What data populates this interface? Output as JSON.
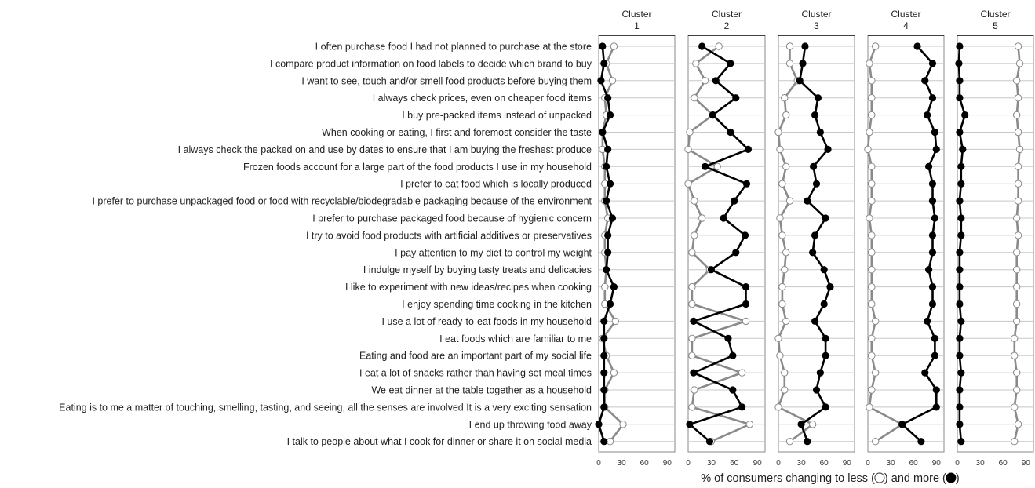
{
  "chart_data": {
    "type": "line",
    "statements": [
      "I often purchase food I had not planned to purchase at the store",
      "I compare product information on food labels to decide which brand to buy",
      "I want to see, touch and/or smell food products before buying them",
      "I always check prices, even on cheaper food items",
      "I buy pre-packed items instead of unpacked",
      "When cooking or eating, I first and foremost consider the taste",
      "I always check the packed on and use by dates to ensure that I am buying the freshest produce",
      "Frozen foods account for a large part of the food products I use in my household",
      "I prefer to eat food which is locally produced",
      "I prefer to purchase unpackaged food or food with recyclable/biodegradable packaging because of the environment",
      "I prefer to purchase packaged food because of hygienic concern",
      "I try to avoid food products with artificial additives or preservatives",
      "I pay attention to my diet to control my weight",
      "I indulge myself by buying tasty treats and delicacies",
      "I like to experiment with new ideas/recipes when cooking",
      "I enjoy spending time cooking in the kitchen",
      "I use a lot of ready-to-eat foods in my household",
      "I eat foods which are familiar to me",
      "Eating and food are an important part of my social life",
      "I eat a lot of snacks rather than having set meal times",
      "We eat dinner at the table together as a household",
      "Eating is to me a matter of touching, smelling, tasting, and seeing, all the senses are involved It is a very exciting sensation",
      "I end up throwing food away",
      "I talk to people about what I cook for dinner or share it on social media"
    ],
    "x_ticks": [
      "0",
      "30",
      "60",
      "90"
    ],
    "xlim": [
      0,
      100
    ],
    "xlabel_prefix": "% of consumers changing to less (",
    "xlabel_middle": ") and more  (",
    "xlabel_suffix": ")",
    "series_styles": {
      "less": {
        "marker": "open circle",
        "line_color": "#8a8a8a"
      },
      "more": {
        "marker": "filled circle",
        "line_color": "#000000"
      }
    },
    "clusters": [
      {
        "title_line1": "Cluster",
        "title_line2": "1",
        "less": [
          20,
          10,
          18,
          8,
          10,
          5,
          5,
          8,
          8,
          8,
          12,
          8,
          8,
          10,
          8,
          8,
          22,
          5,
          10,
          20,
          8,
          8,
          32,
          15
        ],
        "more": [
          5,
          7,
          3,
          12,
          15,
          5,
          12,
          10,
          15,
          10,
          18,
          12,
          12,
          10,
          20,
          15,
          7,
          7,
          7,
          7,
          7,
          7,
          0,
          7
        ]
      },
      {
        "title_line1": "Cluster",
        "title_line2": "2",
        "less": [
          40,
          10,
          22,
          8,
          32,
          2,
          0,
          38,
          0,
          8,
          18,
          8,
          5,
          28,
          5,
          5,
          75,
          5,
          5,
          70,
          8,
          5,
          80,
          30
        ],
        "more": [
          18,
          55,
          36,
          62,
          32,
          55,
          78,
          22,
          76,
          60,
          46,
          74,
          62,
          30,
          75,
          75,
          7,
          52,
          58,
          7,
          58,
          70,
          2,
          28
        ]
      },
      {
        "title_line1": "Cluster",
        "title_line2": "3",
        "less": [
          15,
          15,
          25,
          8,
          10,
          0,
          2,
          10,
          5,
          15,
          2,
          5,
          10,
          8,
          5,
          5,
          10,
          0,
          2,
          8,
          8,
          0,
          45,
          15
        ],
        "more": [
          35,
          32,
          28,
          52,
          48,
          55,
          65,
          46,
          50,
          38,
          62,
          48,
          45,
          60,
          68,
          60,
          48,
          62,
          62,
          55,
          50,
          62,
          30,
          38
        ]
      },
      {
        "title_line1": "Cluster",
        "title_line2": "4",
        "less": [
          10,
          2,
          5,
          5,
          5,
          2,
          0,
          5,
          5,
          5,
          2,
          5,
          5,
          5,
          5,
          5,
          10,
          5,
          5,
          10,
          5,
          2,
          45,
          10
        ],
        "more": [
          65,
          85,
          75,
          85,
          78,
          88,
          90,
          80,
          85,
          85,
          88,
          85,
          85,
          80,
          85,
          85,
          78,
          88,
          88,
          75,
          90,
          90,
          45,
          70
        ]
      },
      {
        "title_line1": "Cluster",
        "title_line2": "5",
        "less": [
          80,
          82,
          78,
          80,
          78,
          80,
          82,
          80,
          80,
          80,
          78,
          80,
          78,
          78,
          78,
          78,
          78,
          75,
          75,
          78,
          78,
          75,
          80,
          75
        ],
        "more": [
          3,
          2,
          3,
          3,
          10,
          3,
          7,
          5,
          5,
          3,
          5,
          5,
          3,
          3,
          3,
          3,
          5,
          3,
          3,
          5,
          3,
          3,
          3,
          5
        ]
      }
    ]
  }
}
